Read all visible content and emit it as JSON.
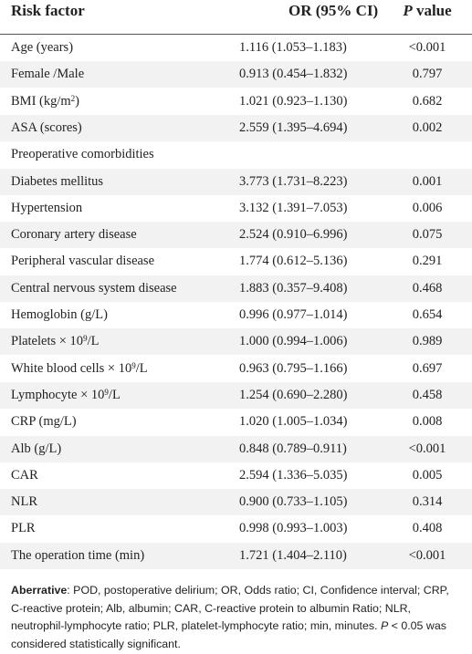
{
  "table": {
    "headers": {
      "factor": "Risk factor",
      "or": "OR (95% CI)",
      "p_italic": "P",
      "p_rest": " value"
    },
    "rows": [
      {
        "factor": "Age (years)",
        "or": "1.116 (1.053–1.183)",
        "p": "<0.001"
      },
      {
        "factor": "Female /Male",
        "or": "0.913 (0.454–1.832)",
        "p": "0.797"
      },
      {
        "factor": "BMI (kg/m",
        "sup": "2",
        "factor_after": ")",
        "or": "1.021 (0.923–1.130)",
        "p": "0.682"
      },
      {
        "factor": "ASA (scores)",
        "or": "2.559 (1.395–4.694)",
        "p": "0.002"
      },
      {
        "factor": "Preoperative comorbidities",
        "or": "",
        "p": ""
      },
      {
        "factor": "Diabetes mellitus",
        "or": "3.773 (1.731–8.223)",
        "p": "0.001"
      },
      {
        "factor": "Hypertension",
        "or": "3.132 (1.391–7.053)",
        "p": "0.006"
      },
      {
        "factor": "Coronary artery disease",
        "or": "2.524 (0.910–6.996)",
        "p": "0.075"
      },
      {
        "factor": "Peripheral vascular disease",
        "or": "1.774 (0.612–5.136)",
        "p": "0.291"
      },
      {
        "factor": "Central nervous system disease",
        "or": "1.883 (0.357–9.408)",
        "p": "0.468"
      },
      {
        "factor": "Hemoglobin (g/L)",
        "or": "0.996 (0.977–1.014)",
        "p": "0.654"
      },
      {
        "factor": "Platelets × 10",
        "sup": "9",
        "factor_after": "/L",
        "or": "1.000 (0.994–1.006)",
        "p": "0.989"
      },
      {
        "factor": "White blood cells × 10",
        "sup": "9",
        "factor_after": "/L",
        "or": "0.963 (0.795–1.166)",
        "p": "0.697"
      },
      {
        "factor": "Lymphocyte × 10",
        "sup": "9",
        "factor_after": "/L",
        "or": "1.254 (0.690–2.280)",
        "p": "0.458"
      },
      {
        "factor": "CRP (mg/L)",
        "or": "1.020 (1.005–1.034)",
        "p": "0.008"
      },
      {
        "factor": "Alb (g/L)",
        "or": "0.848 (0.789–0.911)",
        "p": "<0.001"
      },
      {
        "factor": "CAR",
        "or": "2.594 (1.336–5.035)",
        "p": "0.005"
      },
      {
        "factor": "NLR",
        "or": "0.900 (0.733–1.105)",
        "p": "0.314"
      },
      {
        "factor": "PLR",
        "or": "0.998 (0.993–1.003)",
        "p": "0.408"
      },
      {
        "factor": "The operation time (min)",
        "or": "1.721 (1.404–2.110)",
        "p": "<0.001"
      }
    ]
  },
  "footnote": {
    "lead": "Aberrative",
    "body": ": POD, postoperative delirium; OR, Odds ratio; CI, Confidence interval; CRP, C-reactive protein; Alb, albumin; CAR, C-reactive protein to albumin Ratio; NLR, neutrophil-lymphocyte ratio; PLR, platelet-lymphocyte ratio; min, minutes. ",
    "p_italic": "P",
    "tail": " < 0.05 was considered statistically significant."
  }
}
